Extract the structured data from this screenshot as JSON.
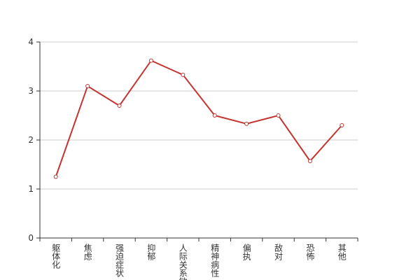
{
  "chart_data": {
    "type": "line",
    "categories": [
      "躯体化",
      "焦虑",
      "强迫症状",
      "抑郁",
      "人际关系敏感",
      "精神病性",
      "偏执",
      "敌对",
      "恐怖",
      "其他"
    ],
    "series": [
      {
        "color": "#c23531",
        "values": [
          1.25,
          3.1,
          2.7,
          3.62,
          3.33,
          2.5,
          2.33,
          2.5,
          1.57,
          2.3
        ]
      }
    ],
    "ylim": [
      0,
      4
    ],
    "yticks": [
      0,
      1,
      2,
      3,
      4
    ],
    "grid": true
  }
}
